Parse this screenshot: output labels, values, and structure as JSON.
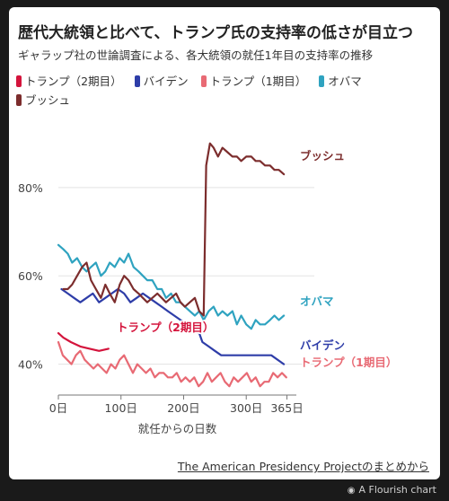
{
  "title": "歴代大統領と比べて、トランプ氏の支持率の低さが目立つ",
  "subtitle": "ギャラップ社の世論調査による、各大統領の就任1年目の支持率の推移",
  "source": "The American Presidency Projectのまとめから",
  "credit": "A Flourish chart",
  "credit_icon": "flourish-logo-icon",
  "chart_data": {
    "type": "line",
    "xlabel": "就任からの日数",
    "ylabel": "",
    "xlim": [
      0,
      380
    ],
    "ylim": [
      33,
      94
    ],
    "x_ticks": [
      {
        "value": 0,
        "label": "0日"
      },
      {
        "value": 100,
        "label": "100日"
      },
      {
        "value": 200,
        "label": "200日"
      },
      {
        "value": 300,
        "label": "300日"
      },
      {
        "value": 365,
        "label": "365日"
      }
    ],
    "y_ticks": [
      {
        "value": 40,
        "label": "40%"
      },
      {
        "value": 60,
        "label": "60%"
      },
      {
        "value": 80,
        "label": "80%"
      }
    ],
    "grid": "horizontal",
    "series": [
      {
        "name": "トランプ（2期目）",
        "label": "トランプ（2期目）",
        "color": "#d4143c",
        "x": [
          0,
          8,
          20,
          35,
          50,
          65,
          80
        ],
        "y": [
          47,
          46,
          45,
          44,
          43.5,
          43,
          43.5
        ]
      },
      {
        "name": "バイデン",
        "label": "バイデン",
        "color": "#2e3da8",
        "x": [
          5,
          15,
          25,
          35,
          45,
          55,
          65,
          75,
          85,
          95,
          105,
          115,
          125,
          135,
          145,
          155,
          165,
          175,
          185,
          195,
          205,
          215,
          225,
          230,
          240,
          250,
          260,
          280,
          300,
          320,
          340,
          360
        ],
        "y": [
          57,
          56,
          55,
          54,
          55,
          56,
          54,
          55,
          56,
          57,
          56,
          54,
          55,
          56,
          55,
          54,
          53,
          52,
          51,
          50,
          49,
          49,
          47,
          45,
          44,
          43,
          42,
          42,
          42,
          42,
          42,
          40
        ]
      },
      {
        "name": "トランプ（1期目）",
        "label": "トランプ（1期目）",
        "color": "#e86a74",
        "x": [
          0,
          7,
          14,
          21,
          28,
          35,
          42,
          49,
          56,
          63,
          70,
          77,
          84,
          91,
          98,
          105,
          112,
          119,
          126,
          133,
          140,
          147,
          154,
          161,
          168,
          175,
          182,
          189,
          196,
          203,
          210,
          217,
          224,
          231,
          238,
          245,
          252,
          259,
          266,
          273,
          280,
          287,
          294,
          301,
          308,
          315,
          322,
          329,
          336,
          343,
          350,
          357,
          364
        ],
        "y": [
          45,
          42,
          41,
          40,
          42,
          43,
          41,
          40,
          39,
          40,
          39,
          38,
          40,
          39,
          41,
          42,
          40,
          38,
          40,
          39,
          38,
          39,
          37,
          38,
          38,
          37,
          37,
          38,
          36,
          37,
          36,
          37,
          35,
          36,
          38,
          36,
          37,
          38,
          36,
          35,
          37,
          36,
          37,
          38,
          36,
          37,
          35,
          36,
          36,
          38,
          37,
          38,
          37
        ]
      },
      {
        "name": "オバマ",
        "label": "オバマ",
        "color": "#2fa3c0",
        "x": [
          0,
          8,
          15,
          22,
          30,
          38,
          45,
          52,
          60,
          68,
          75,
          82,
          90,
          98,
          105,
          112,
          120,
          128,
          135,
          142,
          150,
          158,
          165,
          172,
          180,
          188,
          195,
          202,
          210,
          218,
          225,
          232,
          240,
          248,
          255,
          262,
          270,
          278,
          285,
          292,
          300,
          308,
          315,
          322,
          330,
          338,
          345,
          352,
          360
        ],
        "y": [
          67,
          66,
          65,
          63,
          64,
          62,
          61,
          62,
          63,
          60,
          61,
          63,
          62,
          64,
          63,
          65,
          62,
          61,
          60,
          59,
          59,
          57,
          57,
          55,
          56,
          54,
          54,
          53,
          52,
          51,
          52,
          50,
          52,
          53,
          51,
          52,
          51,
          52,
          49,
          51,
          49,
          48,
          50,
          49,
          49,
          50,
          51,
          50,
          51
        ]
      },
      {
        "name": "ブッシュ",
        "label": "ブッシュ",
        "color": "#7c2d2d",
        "x": [
          8,
          15,
          22,
          30,
          38,
          45,
          52,
          60,
          68,
          75,
          82,
          90,
          98,
          105,
          112,
          120,
          128,
          135,
          142,
          150,
          158,
          165,
          172,
          180,
          188,
          195,
          202,
          210,
          218,
          225,
          232,
          236,
          242,
          248,
          255,
          262,
          270,
          278,
          285,
          292,
          300,
          308,
          315,
          322,
          330,
          338,
          345,
          352,
          360
        ],
        "y": [
          57,
          57,
          58,
          60,
          62,
          63,
          59,
          57,
          55,
          58,
          56,
          54,
          58,
          60,
          59,
          57,
          56,
          55,
          54,
          55,
          56,
          55,
          54,
          55,
          56,
          54,
          53,
          54,
          55,
          52,
          51,
          85,
          90,
          89,
          87,
          89,
          88,
          87,
          87,
          86,
          87,
          87,
          86,
          86,
          85,
          85,
          84,
          84,
          83
        ]
      }
    ]
  }
}
